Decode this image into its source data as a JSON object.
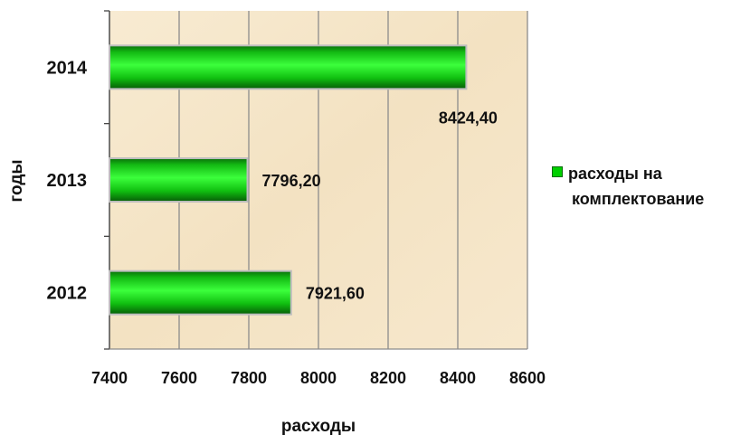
{
  "chart_data": {
    "type": "bar",
    "orientation": "horizontal",
    "categories": [
      "2012",
      "2013",
      "2014"
    ],
    "series": [
      {
        "name": "расходы на комплектование",
        "values": [
          7921.6,
          7796.2,
          8424.4
        ]
      }
    ],
    "data_labels": [
      "7921,60",
      "7796,20",
      "8424,40"
    ],
    "xlabel": "расходы",
    "ylabel": "годы",
    "xlim": [
      7400,
      8600
    ],
    "x_ticks": [
      7400,
      7600,
      7800,
      8000,
      8200,
      8400,
      8600
    ],
    "grid": "vertical",
    "legend_position": "right",
    "colors": {
      "bar": "#00d000",
      "bar_dark": "#066a06",
      "background": "#f6e7cc",
      "grid": "#8a8a8a"
    }
  },
  "legend": {
    "label_line1": "расходы на",
    "label_line2": "комплектование"
  }
}
